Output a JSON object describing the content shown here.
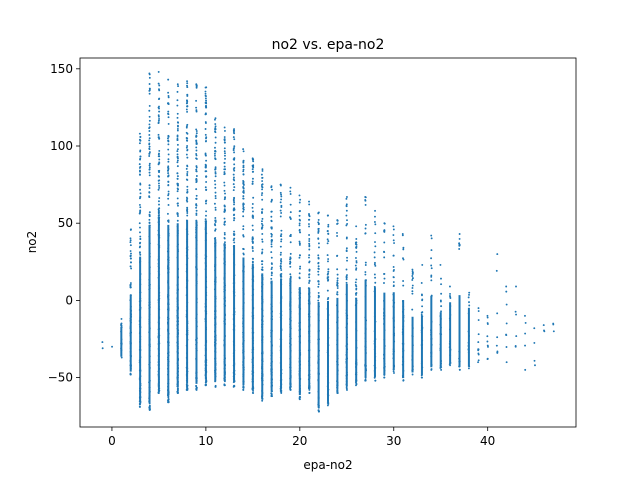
{
  "chart_data": {
    "type": "scatter",
    "title": "no2 vs. epa-no2",
    "xlabel": "epa-no2",
    "ylabel": "no2",
    "xlim": [
      -3.4,
      49.4
    ],
    "ylim": [
      -82,
      157
    ],
    "xticks": [
      0,
      10,
      20,
      30,
      40
    ],
    "yticks": [
      -50,
      0,
      50,
      100,
      150
    ],
    "grid": false,
    "marker_color": "#1f77b4",
    "columns": [
      {
        "x": -1,
        "ymin": -31,
        "ymax": -27,
        "n": 2
      },
      {
        "x": 0,
        "ymin": -30,
        "ymax": -28,
        "n": 1
      },
      {
        "x": 1,
        "ymin": -37,
        "ymax": -12,
        "n": 14
      },
      {
        "x": 2,
        "ymin": -48,
        "ymax": 46,
        "n": 70
      },
      {
        "x": 3,
        "ymin": -69,
        "ymax": 108,
        "n": 120
      },
      {
        "x": 4,
        "ymin": -71,
        "ymax": 147,
        "n": 140
      },
      {
        "x": 5,
        "ymin": -60,
        "ymax": 148,
        "n": 150
      },
      {
        "x": 6,
        "ymin": -66,
        "ymax": 143,
        "n": 150
      },
      {
        "x": 7,
        "ymin": -60,
        "ymax": 140,
        "n": 145
      },
      {
        "x": 8,
        "ymin": -58,
        "ymax": 142,
        "n": 140
      },
      {
        "x": 9,
        "ymin": -58,
        "ymax": 140,
        "n": 135
      },
      {
        "x": 10,
        "ymin": -55,
        "ymax": 138,
        "n": 130
      },
      {
        "x": 11,
        "ymin": -56,
        "ymax": 118,
        "n": 125
      },
      {
        "x": 12,
        "ymin": -55,
        "ymax": 112,
        "n": 125
      },
      {
        "x": 13,
        "ymin": -56,
        "ymax": 111,
        "n": 120
      },
      {
        "x": 14,
        "ymin": -58,
        "ymax": 98,
        "n": 115
      },
      {
        "x": 15,
        "ymin": -60,
        "ymax": 92,
        "n": 110
      },
      {
        "x": 16,
        "ymin": -65,
        "ymax": 85,
        "n": 105
      },
      {
        "x": 17,
        "ymin": -62,
        "ymax": 74,
        "n": 100
      },
      {
        "x": 18,
        "ymin": -60,
        "ymax": 75,
        "n": 95
      },
      {
        "x": 19,
        "ymin": -58,
        "ymax": 73,
        "n": 90
      },
      {
        "x": 20,
        "ymin": -64,
        "ymax": 68,
        "n": 85
      },
      {
        "x": 21,
        "ymin": -60,
        "ymax": 64,
        "n": 80
      },
      {
        "x": 22,
        "ymin": -72,
        "ymax": 57,
        "n": 75
      },
      {
        "x": 23,
        "ymin": -68,
        "ymax": 55,
        "n": 70
      },
      {
        "x": 24,
        "ymin": -60,
        "ymax": 52,
        "n": 65
      },
      {
        "x": 25,
        "ymin": -58,
        "ymax": 67,
        "n": 60
      },
      {
        "x": 26,
        "ymin": -55,
        "ymax": 48,
        "n": 55
      },
      {
        "x": 27,
        "ymin": -52,
        "ymax": 67,
        "n": 50
      },
      {
        "x": 28,
        "ymin": -52,
        "ymax": 58,
        "n": 45
      },
      {
        "x": 29,
        "ymin": -50,
        "ymax": 50,
        "n": 42
      },
      {
        "x": 30,
        "ymin": -47,
        "ymax": 48,
        "n": 40
      },
      {
        "x": 31,
        "ymin": -52,
        "ymax": 43,
        "n": 38
      },
      {
        "x": 32,
        "ymin": -48,
        "ymax": 20,
        "n": 30
      },
      {
        "x": 33,
        "ymin": -50,
        "ymax": 23,
        "n": 28
      },
      {
        "x": 34,
        "ymin": -45,
        "ymax": 42,
        "n": 26
      },
      {
        "x": 35,
        "ymin": -45,
        "ymax": 23,
        "n": 24
      },
      {
        "x": 36,
        "ymin": -42,
        "ymax": 9,
        "n": 20
      },
      {
        "x": 37,
        "ymin": -45,
        "ymax": 43,
        "n": 18
      },
      {
        "x": 38,
        "ymin": -44,
        "ymax": 5,
        "n": 16
      },
      {
        "x": 39,
        "ymin": -40,
        "ymax": -5,
        "n": 12
      },
      {
        "x": 40,
        "ymin": -38,
        "ymax": -10,
        "n": 10
      },
      {
        "x": 41,
        "ymin": -34,
        "ymax": 30,
        "n": 8
      },
      {
        "x": 42,
        "ymin": -40,
        "ymax": 9,
        "n": 8
      },
      {
        "x": 43,
        "ymin": -30,
        "ymax": 9,
        "n": 6
      },
      {
        "x": 44,
        "ymin": -45,
        "ymax": -10,
        "n": 5
      },
      {
        "x": 45,
        "ymin": -42,
        "ymax": -18,
        "n": 4
      },
      {
        "x": 46,
        "ymin": -20,
        "ymax": -16,
        "n": 3
      },
      {
        "x": 47,
        "ymin": -20,
        "ymax": -15,
        "n": 3
      }
    ]
  }
}
